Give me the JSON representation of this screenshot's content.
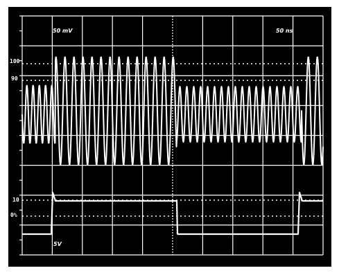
{
  "screen": {
    "ch1_scale": "50 mV",
    "time_scale": "50 ns",
    "ch2_scale": "5V"
  },
  "levels": {
    "l100": "100",
    "l90": "90",
    "l10": "10",
    "l0": "0%"
  },
  "colors": {
    "screen_bg": "#000000",
    "trace": "#ffffff",
    "grid": "#ffffff"
  }
}
